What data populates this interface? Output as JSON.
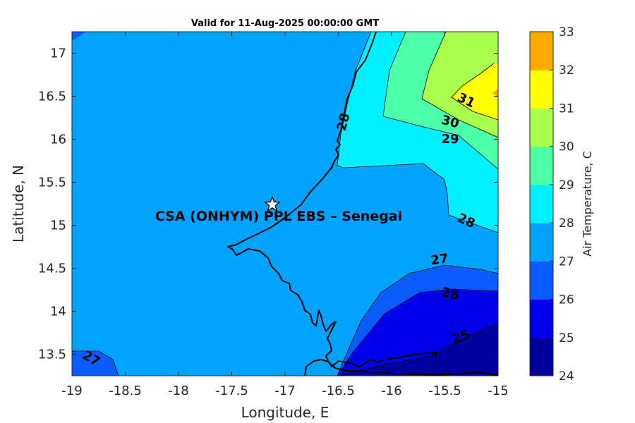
{
  "chart_data": {
    "type": "heatmap",
    "title": "Valid for 11-Aug-2025 00:00:00 GMT",
    "xlabel": "Longitude, E",
    "ylabel": "Latitude, N",
    "xlim": [
      -19,
      -15
    ],
    "ylim": [
      13.25,
      17.25
    ],
    "xticks": [
      -19,
      -18.5,
      -18,
      -17.5,
      -17,
      -16.5,
      -16,
      -15.5,
      -15
    ],
    "yticks": [
      13.5,
      14,
      14.5,
      15,
      15.5,
      16,
      16.5,
      17
    ],
    "grid": false,
    "colorbar": {
      "label": "Air Temperature, C",
      "levels": [
        24,
        25,
        26,
        27,
        28,
        29,
        30,
        31,
        32,
        33
      ],
      "colors": [
        "#00009c",
        "#0000ee",
        "#0b5cff",
        "#00a4ff",
        "#00f0ff",
        "#4dffa8",
        "#aaff4d",
        "#ffff00",
        "#ffaa00",
        "#ff5500"
      ]
    },
    "contour_labels": [
      {
        "text": "31",
        "lon": -15.3,
        "lat": 16.45,
        "rotate": 25
      },
      {
        "text": "30",
        "lon": -15.45,
        "lat": 16.2,
        "rotate": 15
      },
      {
        "text": "29",
        "lon": -15.45,
        "lat": 16.0,
        "rotate": 0
      },
      {
        "text": "28",
        "lon": -16.45,
        "lat": 16.2,
        "rotate": -75
      },
      {
        "text": "28",
        "lon": -15.3,
        "lat": 15.05,
        "rotate": 25
      },
      {
        "text": "27",
        "lon": -15.55,
        "lat": 14.6,
        "rotate": -8
      },
      {
        "text": "26",
        "lon": -15.45,
        "lat": 14.2,
        "rotate": 15
      },
      {
        "text": "25",
        "lon": -15.35,
        "lat": 13.7,
        "rotate": -20
      },
      {
        "text": "27",
        "lon": -18.82,
        "lat": 13.45,
        "rotate": 30
      }
    ],
    "station": {
      "name": "CSA (ONHYM) PPL EBS  – Senegal",
      "lon": -17.12,
      "lat": 15.24
    }
  }
}
